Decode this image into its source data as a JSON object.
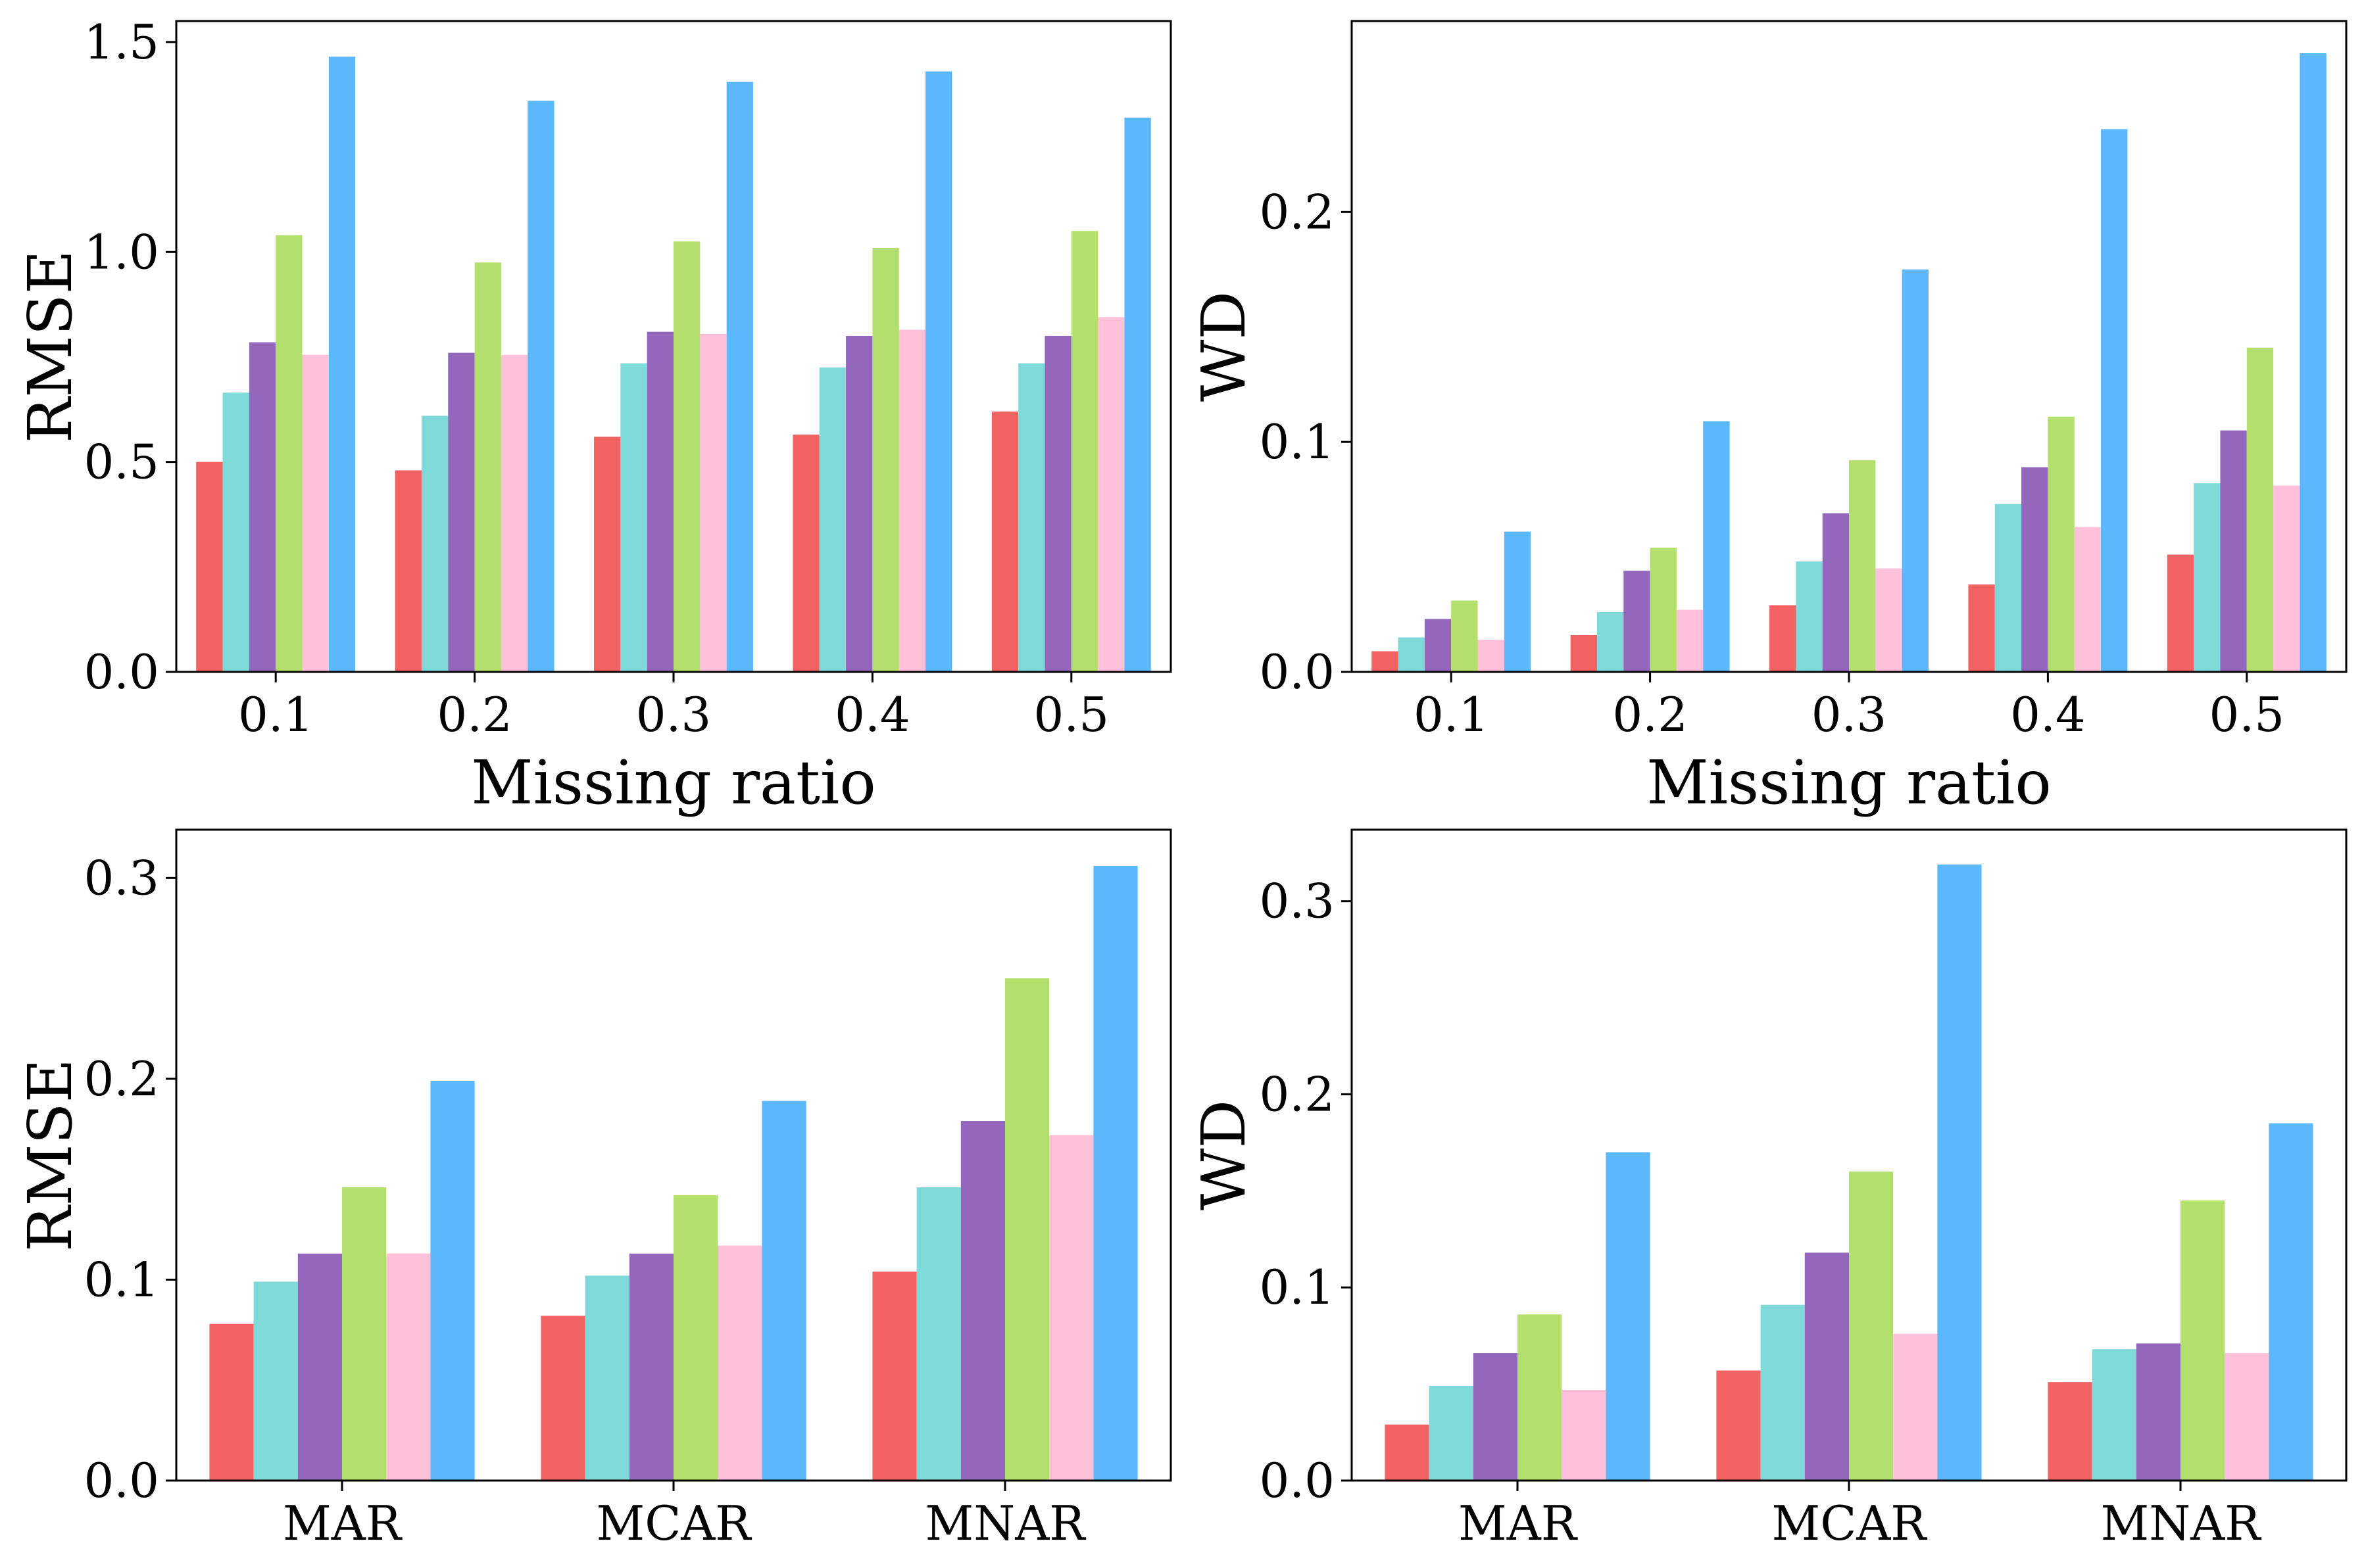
{
  "series_colors": [
    "#f26262",
    "#80d9d9",
    "#9467bd",
    "#b3df6c",
    "#ffc0da",
    "#5cb8fb"
  ],
  "chart_data": [
    {
      "type": "bar",
      "categories": [
        "0.1",
        "0.2",
        "0.3",
        "0.4",
        "0.5"
      ],
      "xlabel": "Missing ratio",
      "ylabel": "RMSE",
      "ylim": [
        0,
        1.55
      ],
      "yticks": [
        0,
        0.5,
        1.0,
        1.5
      ],
      "ytick_labels": [
        "0.0",
        "0.5",
        "1.0",
        "1.5"
      ],
      "grid": false,
      "series": [
        {
          "values": [
            0.5,
            0.48,
            0.56,
            0.565,
            0.62
          ]
        },
        {
          "values": [
            0.665,
            0.61,
            0.735,
            0.725,
            0.735
          ]
        },
        {
          "values": [
            0.785,
            0.76,
            0.81,
            0.8,
            0.8
          ]
        },
        {
          "values": [
            1.04,
            0.975,
            1.025,
            1.01,
            1.05
          ]
        },
        {
          "values": [
            0.755,
            0.755,
            0.805,
            0.815,
            0.845
          ]
        },
        {
          "values": [
            1.465,
            1.36,
            1.405,
            1.43,
            1.32
          ]
        }
      ]
    },
    {
      "type": "bar",
      "categories": [
        "0.1",
        "0.2",
        "0.3",
        "0.4",
        "0.5"
      ],
      "xlabel": "Missing ratio",
      "ylabel": "WD",
      "ylim": [
        0,
        0.283
      ],
      "yticks": [
        0,
        0.1,
        0.2
      ],
      "ytick_labels": [
        "0.0",
        "0.1",
        "0.2"
      ],
      "grid": false,
      "series": [
        {
          "values": [
            0.009,
            0.016,
            0.029,
            0.038,
            0.051
          ]
        },
        {
          "values": [
            0.015,
            0.026,
            0.048,
            0.073,
            0.082
          ]
        },
        {
          "values": [
            0.023,
            0.044,
            0.069,
            0.089,
            0.105
          ]
        },
        {
          "values": [
            0.031,
            0.054,
            0.092,
            0.111,
            0.141
          ]
        },
        {
          "values": [
            0.014,
            0.027,
            0.045,
            0.063,
            0.081
          ]
        },
        {
          "values": [
            0.061,
            0.109,
            0.175,
            0.236,
            0.269
          ]
        }
      ]
    },
    {
      "type": "bar",
      "categories": [
        "MAR",
        "MCAR",
        "MNAR"
      ],
      "xlabel": "",
      "ylabel": "RMSE",
      "ylim": [
        0,
        0.324
      ],
      "yticks": [
        0,
        0.1,
        0.2,
        0.3
      ],
      "ytick_labels": [
        "0.0",
        "0.1",
        "0.2",
        "0.3"
      ],
      "grid": false,
      "series": [
        {
          "values": [
            0.078,
            0.082,
            0.104
          ]
        },
        {
          "values": [
            0.099,
            0.102,
            0.146
          ]
        },
        {
          "values": [
            0.113,
            0.113,
            0.179
          ]
        },
        {
          "values": [
            0.146,
            0.142,
            0.25
          ]
        },
        {
          "values": [
            0.113,
            0.117,
            0.172
          ]
        },
        {
          "values": [
            0.199,
            0.189,
            0.306
          ]
        }
      ]
    },
    {
      "type": "bar",
      "categories": [
        "MAR",
        "MCAR",
        "MNAR"
      ],
      "xlabel": "",
      "ylabel": "WD",
      "ylim": [
        0,
        0.337
      ],
      "yticks": [
        0,
        0.1,
        0.2,
        0.3
      ],
      "ytick_labels": [
        "0.0",
        "0.1",
        "0.2",
        "0.3"
      ],
      "grid": false,
      "series": [
        {
          "values": [
            0.029,
            0.057,
            0.051
          ]
        },
        {
          "values": [
            0.049,
            0.091,
            0.068
          ]
        },
        {
          "values": [
            0.066,
            0.118,
            0.071
          ]
        },
        {
          "values": [
            0.086,
            0.16,
            0.145
          ]
        },
        {
          "values": [
            0.047,
            0.076,
            0.066
          ]
        },
        {
          "values": [
            0.17,
            0.319,
            0.185
          ]
        }
      ]
    }
  ]
}
